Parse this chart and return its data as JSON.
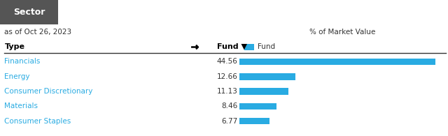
{
  "header_text": "Sector",
  "date_text": "as of Oct 26, 2023",
  "pct_label": "% of Market Value",
  "col_type": "Type",
  "col_fund": "Fund ▼",
  "legend_label": "Fund",
  "categories": [
    "Financials",
    "Energy",
    "Consumer Discretionary",
    "Materials",
    "Consumer Staples"
  ],
  "values": [
    44.56,
    12.66,
    11.13,
    8.46,
    6.77
  ],
  "bar_color": "#29ABE2",
  "header_bg": "#555555",
  "header_text_color": "#ffffff",
  "top_bg": "#d4d4d4",
  "body_bg": "#ffffff",
  "category_color": "#29ABE2",
  "value_color": "#333333",
  "label_color": "#333333",
  "bar_max": 47,
  "fig_width": 6.4,
  "fig_height": 1.95
}
